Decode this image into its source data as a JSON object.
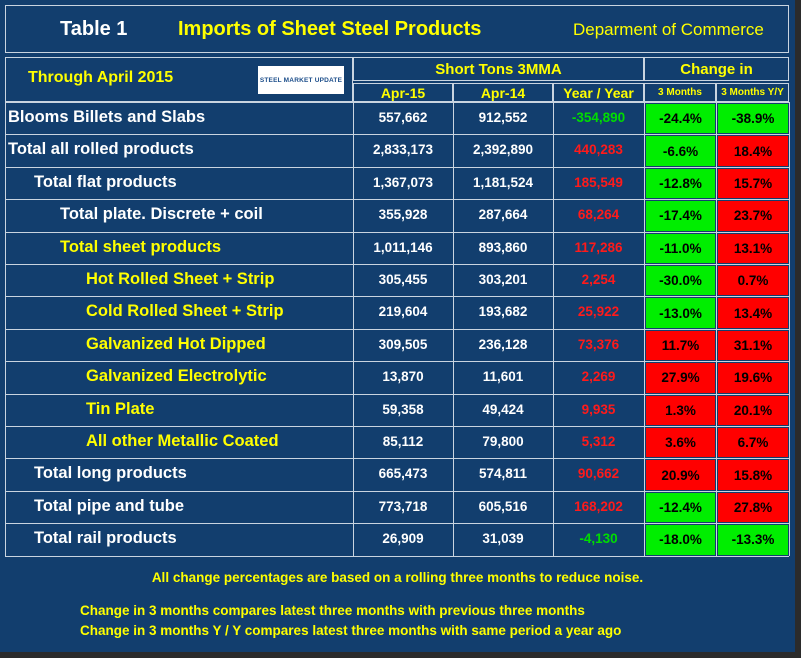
{
  "header": {
    "table_label": "Table 1",
    "title": "Imports of Sheet Steel Products",
    "source": "Deparment of Commerce",
    "through": "Through April 2015",
    "logo": "STEEL MARKET UPDATE",
    "group_tons": "Short Tons 3MMA",
    "group_change": "Change in",
    "col_apr15": "Apr-15",
    "col_apr14": "Apr-14",
    "col_yy": "Year / Year",
    "col_3m": "3 Months",
    "col_3myy": "3 Months Y/Y"
  },
  "rows": [
    {
      "label": "Blooms Billets and Slabs",
      "apr15": "557,662",
      "apr14": "912,552",
      "yy": "-354,890",
      "m3": "-24.4%",
      "m3yy": "-38.9%",
      "yy_sign": "neg",
      "m3_color": "green",
      "m3yy_color": "green",
      "indent": 0,
      "label_color": "#ffffff"
    },
    {
      "label": "Total all rolled products",
      "apr15": "2,833,173",
      "apr14": "2,392,890",
      "yy": "440,283",
      "m3": "-6.6%",
      "m3yy": "18.4%",
      "yy_sign": "pos",
      "m3_color": "green",
      "m3yy_color": "red",
      "indent": 0,
      "label_color": "#ffffff"
    },
    {
      "label": "Total flat products",
      "apr15": "1,367,073",
      "apr14": "1,181,524",
      "yy": "185,549",
      "m3": "-12.8%",
      "m3yy": "15.7%",
      "yy_sign": "pos",
      "m3_color": "green",
      "m3yy_color": "red",
      "indent": 1,
      "label_color": "#ffffff"
    },
    {
      "label": "Total plate. Discrete + coil",
      "apr15": "355,928",
      "apr14": "287,664",
      "yy": "68,264",
      "m3": "-17.4%",
      "m3yy": "23.7%",
      "yy_sign": "pos",
      "m3_color": "green",
      "m3yy_color": "red",
      "indent": 2,
      "label_color": "#ffffff"
    },
    {
      "label": "Total sheet products",
      "apr15": "1,011,146",
      "apr14": "893,860",
      "yy": "117,286",
      "m3": "-11.0%",
      "m3yy": "13.1%",
      "yy_sign": "pos",
      "m3_color": "green",
      "m3yy_color": "red",
      "indent": 2,
      "label_color": "#ffff00"
    },
    {
      "label": "Hot Rolled Sheet + Strip",
      "apr15": "305,455",
      "apr14": "303,201",
      "yy": "2,254",
      "m3": "-30.0%",
      "m3yy": "0.7%",
      "yy_sign": "pos",
      "m3_color": "green",
      "m3yy_color": "red",
      "indent": 3,
      "label_color": "#ffff00"
    },
    {
      "label": "Cold Rolled Sheet + Strip",
      "apr15": "219,604",
      "apr14": "193,682",
      "yy": "25,922",
      "m3": "-13.0%",
      "m3yy": "13.4%",
      "yy_sign": "pos",
      "m3_color": "green",
      "m3yy_color": "red",
      "indent": 3,
      "label_color": "#ffff00"
    },
    {
      "label": "Galvanized Hot Dipped",
      "apr15": "309,505",
      "apr14": "236,128",
      "yy": "73,376",
      "m3": "11.7%",
      "m3yy": "31.1%",
      "yy_sign": "pos",
      "m3_color": "red",
      "m3yy_color": "red",
      "indent": 3,
      "label_color": "#ffff00"
    },
    {
      "label": "Galvanized Electrolytic",
      "apr15": "13,870",
      "apr14": "11,601",
      "yy": "2,269",
      "m3": "27.9%",
      "m3yy": "19.6%",
      "yy_sign": "pos",
      "m3_color": "red",
      "m3yy_color": "red",
      "indent": 3,
      "label_color": "#ffff00"
    },
    {
      "label": "Tin Plate",
      "apr15": "59,358",
      "apr14": "49,424",
      "yy": "9,935",
      "m3": "1.3%",
      "m3yy": "20.1%",
      "yy_sign": "pos",
      "m3_color": "red",
      "m3yy_color": "red",
      "indent": 3,
      "label_color": "#ffff00"
    },
    {
      "label": "All other Metallic Coated",
      "apr15": "85,112",
      "apr14": "79,800",
      "yy": "5,312",
      "m3": "3.6%",
      "m3yy": "6.7%",
      "yy_sign": "pos",
      "m3_color": "red",
      "m3yy_color": "red",
      "indent": 3,
      "label_color": "#ffff00"
    },
    {
      "label": "Total long products",
      "apr15": "665,473",
      "apr14": "574,811",
      "yy": "90,662",
      "m3": "20.9%",
      "m3yy": "15.8%",
      "yy_sign": "pos",
      "m3_color": "red",
      "m3yy_color": "red",
      "indent": 1,
      "label_color": "#ffffff"
    },
    {
      "label": "Total pipe and tube",
      "apr15": "773,718",
      "apr14": "605,516",
      "yy": "168,202",
      "m3": "-12.4%",
      "m3yy": "27.8%",
      "yy_sign": "pos",
      "m3_color": "green",
      "m3yy_color": "red",
      "indent": 1,
      "label_color": "#ffffff"
    },
    {
      "label": "Total rail products",
      "apr15": "26,909",
      "apr14": "31,039",
      "yy": "-4,130",
      "m3": "-18.0%",
      "m3yy": "-13.3%",
      "yy_sign": "neg",
      "m3_color": "green",
      "m3yy_color": "green",
      "indent": 1,
      "label_color": "#ffffff"
    }
  ],
  "notes": {
    "line1": "All change percentages are based on a rolling three months to reduce noise.",
    "line2": "Change in 3 months compares latest three months with previous three months",
    "line3": "Change in 3 months  Y / Y compares latest three months with same period a year ago"
  }
}
